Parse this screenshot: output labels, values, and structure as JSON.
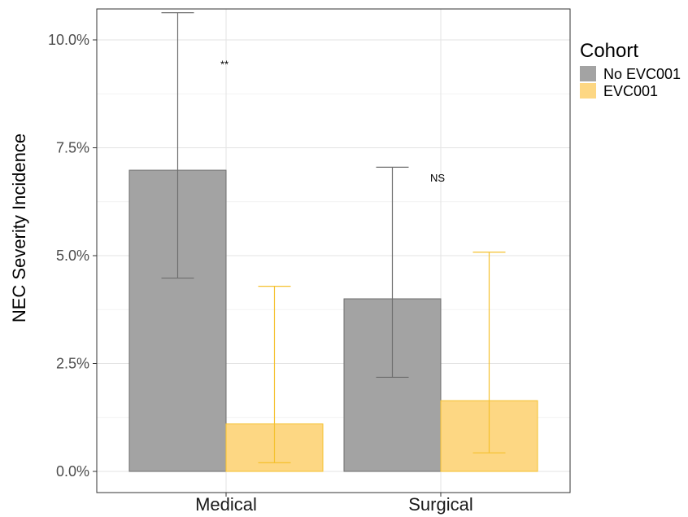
{
  "chart_data": {
    "type": "bar",
    "ylabel": "NEC Severity Incidence",
    "categories": [
      "Medical",
      "Surgical"
    ],
    "ylim": [
      0,
      0.107
    ],
    "yticks": [
      0,
      0.025,
      0.05,
      0.075,
      0.1
    ],
    "ytick_labels": [
      "0.0%",
      "2.5%",
      "5.0%",
      "7.5%",
      "10.0%"
    ],
    "grid": true,
    "legend": {
      "title": "Cohort",
      "position": "right",
      "entries": [
        "No EVC001",
        "EVC001"
      ]
    },
    "series": [
      {
        "name": "No EVC001",
        "color": "#a3a3a3",
        "edge_color": "#6e6e6e",
        "values": [
          0.0698,
          0.04
        ],
        "error_low": [
          0.0448,
          0.0218
        ],
        "error_high": [
          0.1063,
          0.0705
        ]
      },
      {
        "name": "EVC001",
        "color": "#fdd783",
        "edge_color": "#f5c12e",
        "values": [
          0.011,
          0.0164
        ],
        "error_low": [
          0.002,
          0.0043
        ],
        "error_high": [
          0.0429,
          0.0508
        ]
      }
    ],
    "annotations": [
      {
        "text": "**",
        "category": "Medical",
        "y": 0.0935
      },
      {
        "text": "NS",
        "category": "Surgical",
        "y": 0.0672
      }
    ]
  }
}
